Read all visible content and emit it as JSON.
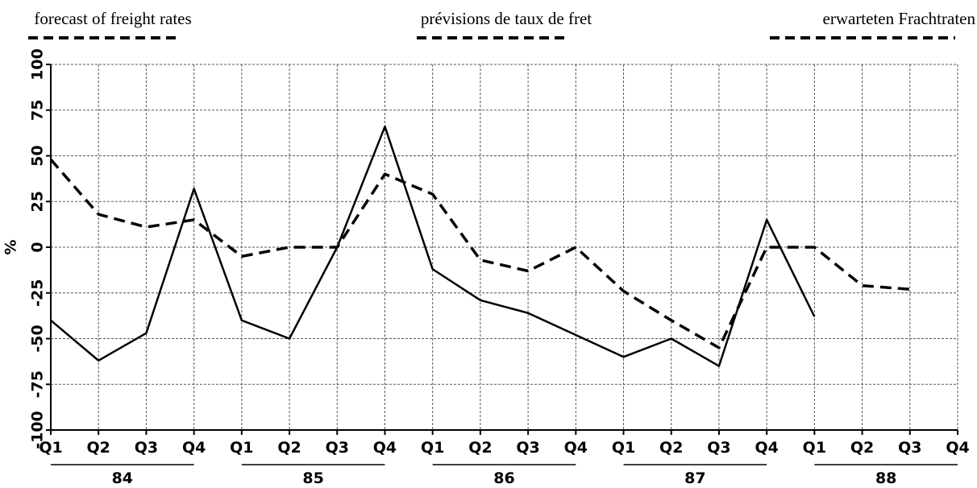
{
  "chart_data": {
    "type": "line",
    "legend": [
      "forecast of freight rates",
      "prévisions de taux de fret",
      "erwarteten Frachtraten"
    ],
    "y_label": "%",
    "categories": [
      "Q1",
      "Q2",
      "Q3",
      "Q4",
      "Q1",
      "Q2",
      "Q3",
      "Q4",
      "Q1",
      "Q2",
      "Q3",
      "Q4",
      "Q1",
      "Q2",
      "Q3",
      "Q4",
      "Q1",
      "Q2",
      "Q3",
      "Q4"
    ],
    "groups": [
      "84",
      "85",
      "86",
      "87",
      "88"
    ],
    "series": [
      {
        "color": "#000",
        "dash": false,
        "values": [
          -40,
          -62,
          -47,
          32,
          -40,
          -50,
          0,
          66,
          -12,
          -29,
          -36,
          -48,
          -60,
          -50,
          -65,
          15,
          -38,
          null,
          null,
          null
        ]
      },
      {
        "color": "#000",
        "dash": true,
        "values": [
          48,
          18,
          11,
          15,
          -5,
          0,
          0,
          40,
          29,
          -7,
          -13,
          0,
          -24,
          -40,
          -55,
          0,
          0,
          -21,
          -23,
          null
        ]
      }
    ],
    "ylim": [
      -100,
      100
    ],
    "yticks": [
      -100,
      -75,
      -50,
      -25,
      0,
      25,
      50,
      75,
      100
    ],
    "grid": true
  }
}
